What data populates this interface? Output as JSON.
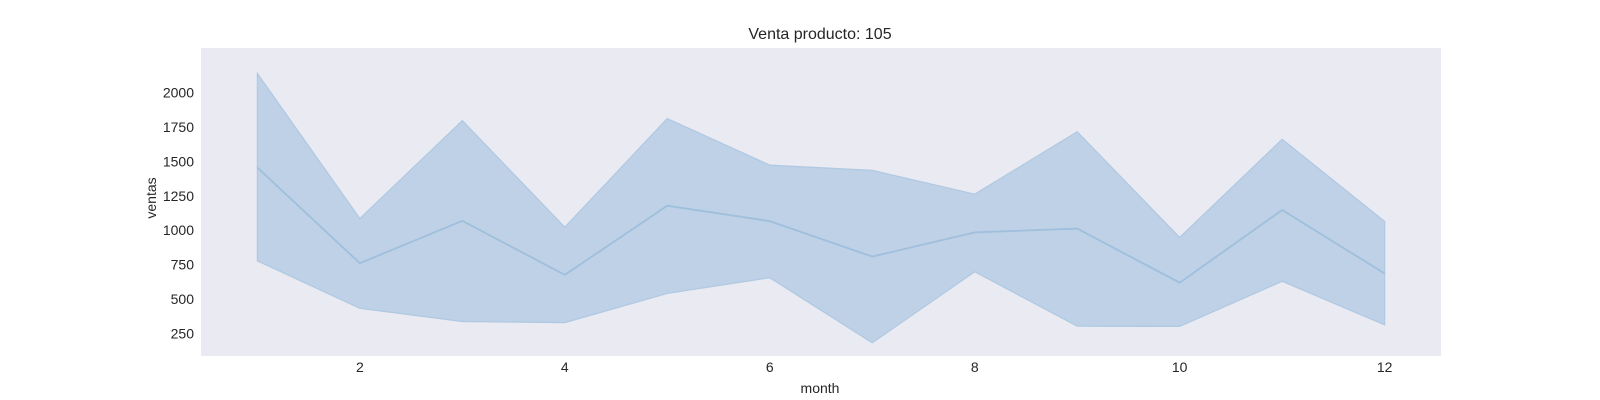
{
  "chart_data": {
    "type": "line",
    "title": "Venta producto: 105",
    "xlabel": "month",
    "ylabel": "ventas",
    "x": [
      1,
      2,
      3,
      4,
      5,
      6,
      7,
      8,
      9,
      10,
      11,
      12
    ],
    "series": [
      {
        "values": [
          1455,
          760,
          1068,
          675,
          1178,
          1066,
          808,
          984,
          1012,
          618,
          1147,
          685
        ],
        "band_upper": [
          2140,
          1085,
          1797,
          1022,
          1812,
          1473,
          1435,
          1262,
          1716,
          947,
          1661,
          1064
        ],
        "band_lower": [
          777,
          432,
          336,
          328,
          540,
          654,
          181,
          698,
          302,
          300,
          628,
          312
        ]
      }
    ],
    "xlim": [
      0.45,
      12.55
    ],
    "ylim": [
      85,
      2325
    ],
    "xticks": [
      2,
      4,
      6,
      8,
      10,
      12
    ],
    "yticks": [
      250,
      500,
      750,
      1000,
      1250,
      1500,
      1750,
      2000
    ],
    "grid": false,
    "colors": {
      "plot_background": "#eaeaf2",
      "band_fill": "#a6c3de",
      "line": "#9fbfdc",
      "band_edge": "#afc9e2"
    }
  }
}
